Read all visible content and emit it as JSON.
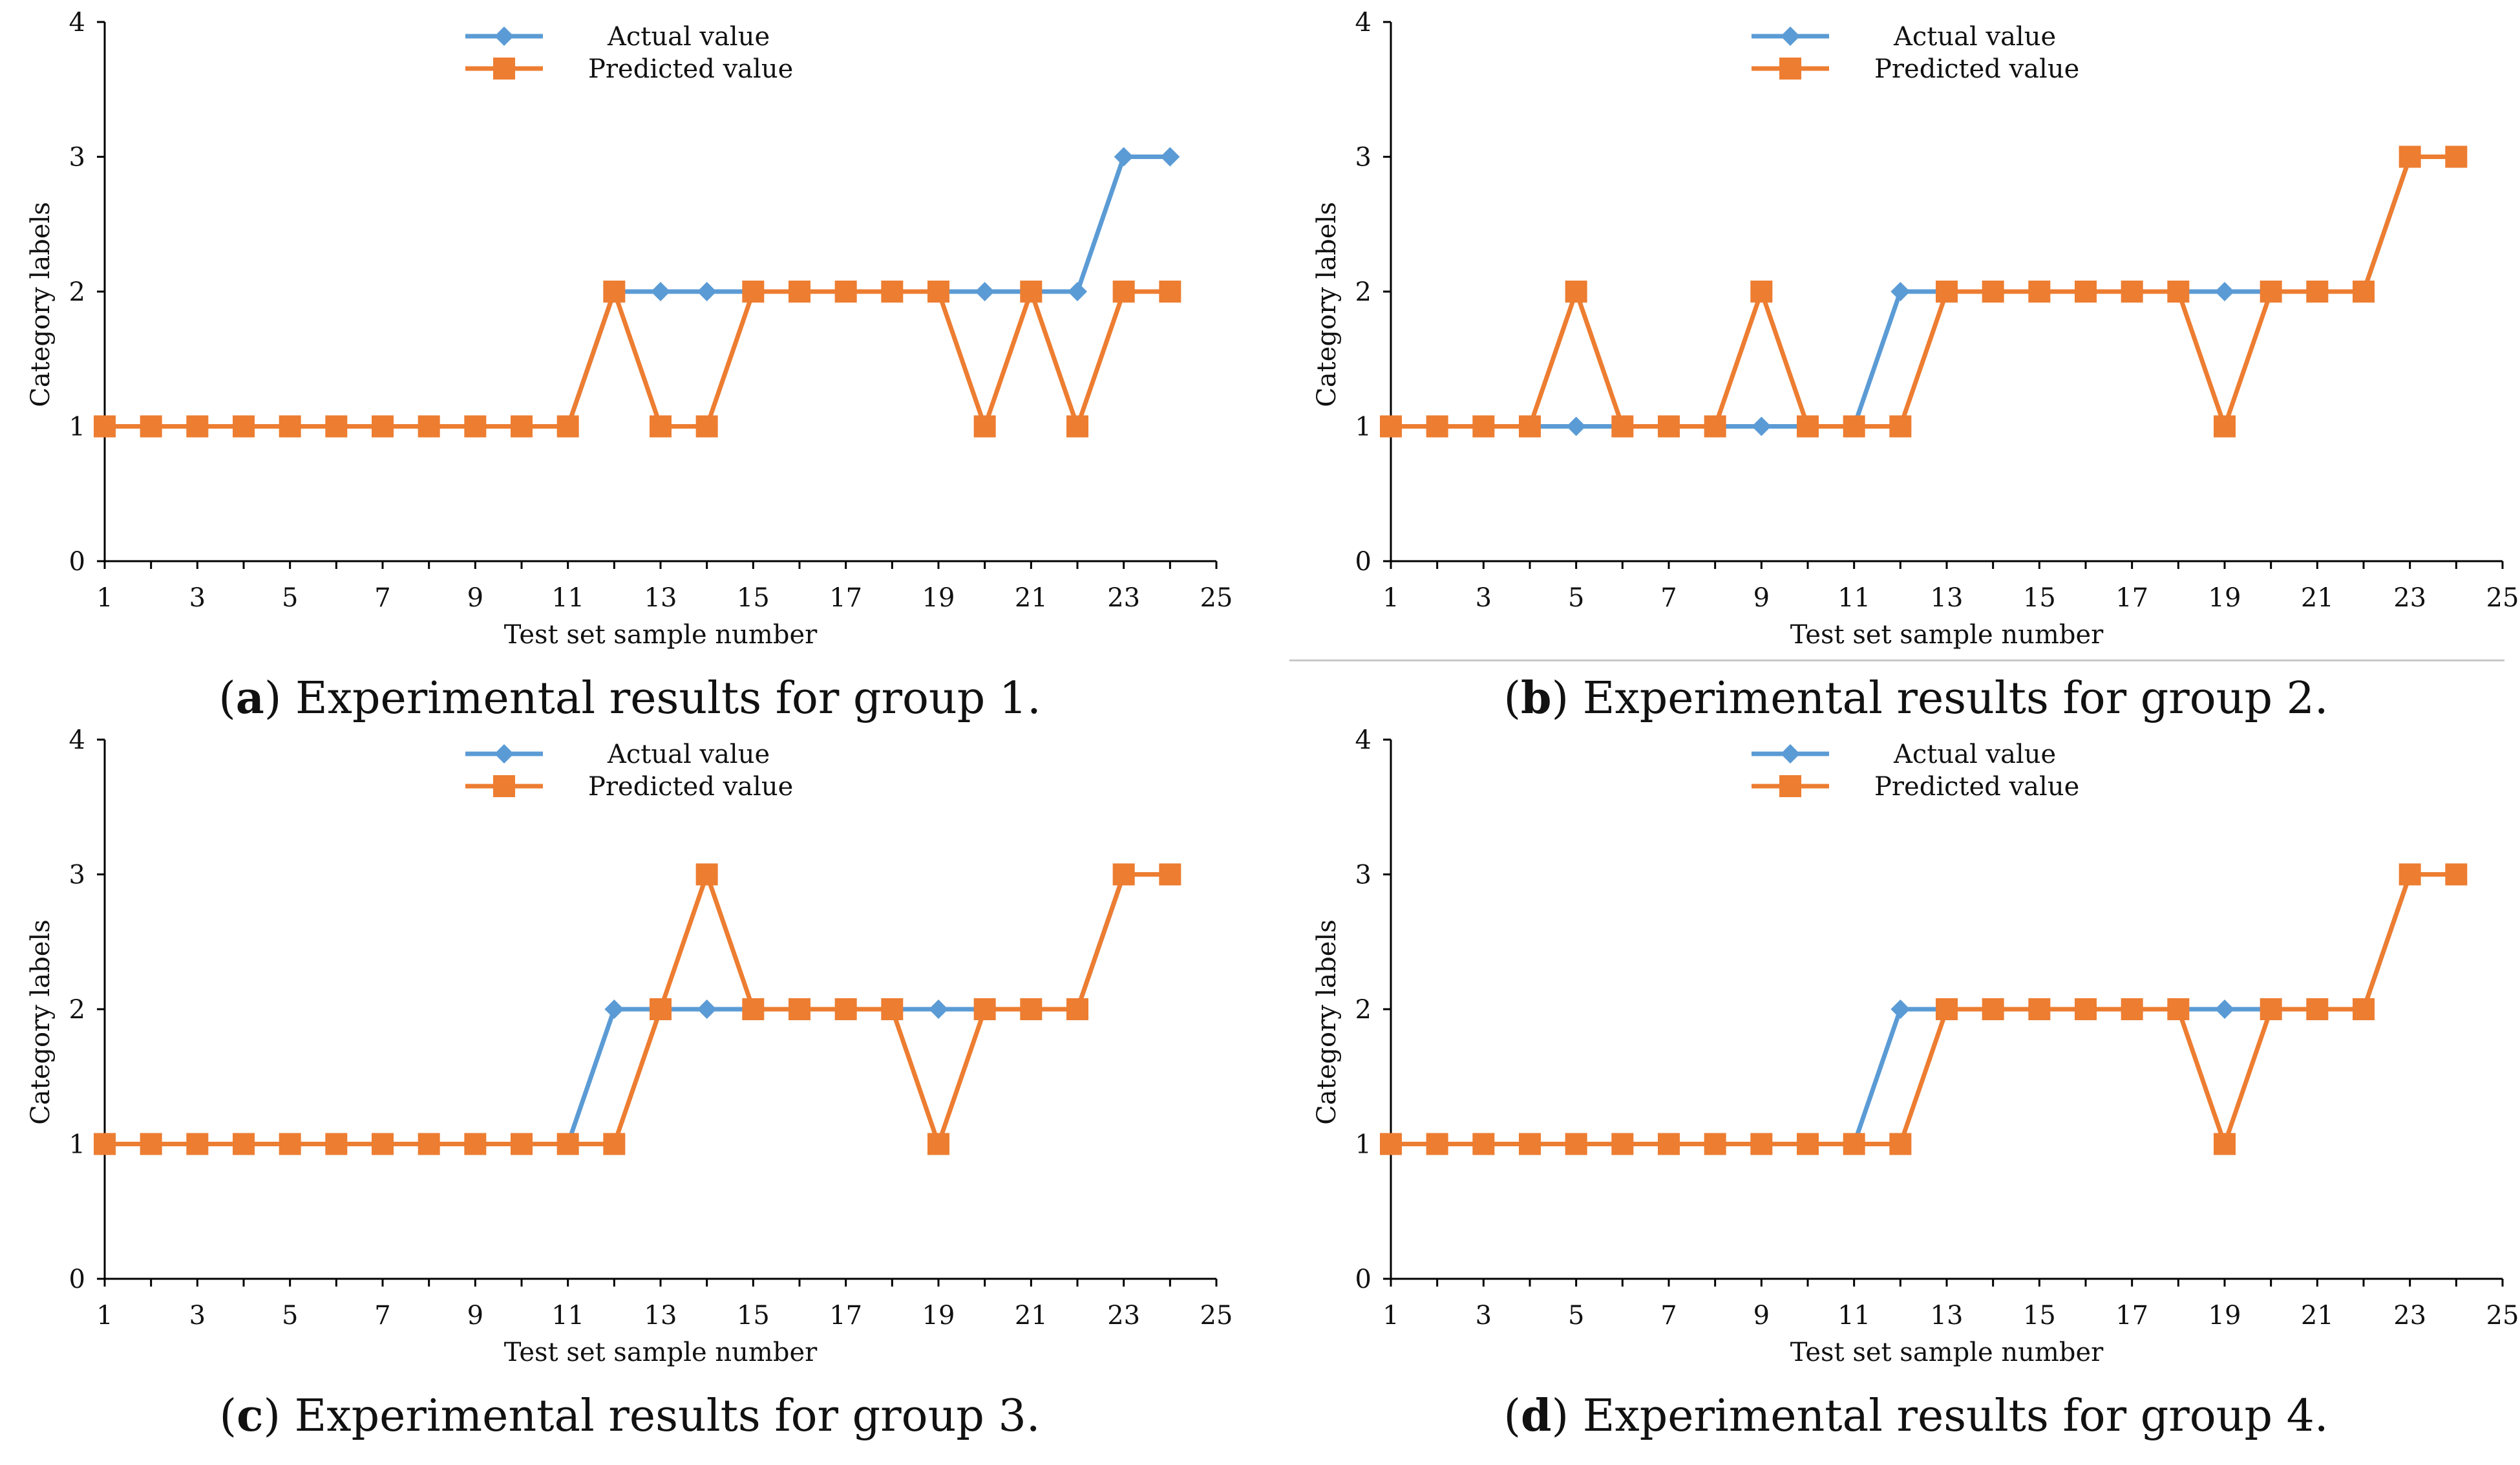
{
  "colors": {
    "actual": "#5B9BD5",
    "predicted": "#ED7D31",
    "axis": "#000000",
    "text": "#111111"
  },
  "panels": [
    {
      "letter": "a",
      "caption": ") Experimental results for group 1.",
      "chart_data": {
        "type": "line",
        "xlabel": "Test set sample number",
        "ylabel": "Category labels",
        "xlim": [
          1,
          25
        ],
        "ylim": [
          0,
          4
        ],
        "xticks": [
          "1",
          "3",
          "5",
          "7",
          "9",
          "11",
          "13",
          "15",
          "17",
          "19",
          "21",
          "23",
          "25"
        ],
        "yticks": [
          "0",
          "1",
          "2",
          "3",
          "4"
        ],
        "x": [
          1,
          2,
          3,
          4,
          5,
          6,
          7,
          8,
          9,
          10,
          11,
          12,
          13,
          14,
          15,
          16,
          17,
          18,
          19,
          20,
          21,
          22,
          23,
          24
        ],
        "series": [
          {
            "name": "Actual value",
            "marker": "diamond",
            "values": [
              1,
              1,
              1,
              1,
              1,
              1,
              1,
              1,
              1,
              1,
              1,
              2,
              2,
              2,
              2,
              2,
              2,
              2,
              2,
              2,
              2,
              2,
              3,
              3
            ]
          },
          {
            "name": "Predicted value",
            "marker": "square",
            "values": [
              1,
              1,
              1,
              1,
              1,
              1,
              1,
              1,
              1,
              1,
              1,
              2,
              1,
              1,
              2,
              2,
              2,
              2,
              2,
              1,
              2,
              1,
              2,
              2
            ]
          }
        ],
        "legend_position": "top-center"
      }
    },
    {
      "letter": "b",
      "caption": ") Experimental results for group 2.",
      "chart_data": {
        "type": "line",
        "xlabel": "Test set sample number",
        "ylabel": "Category labels",
        "xlim": [
          1,
          25
        ],
        "ylim": [
          0,
          4
        ],
        "xticks": [
          "1",
          "3",
          "5",
          "7",
          "9",
          "11",
          "13",
          "15",
          "17",
          "19",
          "21",
          "23",
          "25"
        ],
        "yticks": [
          "0",
          "1",
          "2",
          "3",
          "4"
        ],
        "x": [
          1,
          2,
          3,
          4,
          5,
          6,
          7,
          8,
          9,
          10,
          11,
          12,
          13,
          14,
          15,
          16,
          17,
          18,
          19,
          20,
          21,
          22,
          23,
          24
        ],
        "series": [
          {
            "name": "Actual value",
            "marker": "diamond",
            "values": [
              1,
              1,
              1,
              1,
              1,
              1,
              1,
              1,
              1,
              1,
              1,
              2,
              2,
              2,
              2,
              2,
              2,
              2,
              2,
              2,
              2,
              2,
              3,
              3
            ]
          },
          {
            "name": "Predicted value",
            "marker": "square",
            "values": [
              1,
              1,
              1,
              1,
              2,
              1,
              1,
              1,
              2,
              1,
              1,
              1,
              2,
              2,
              2,
              2,
              2,
              2,
              1,
              2,
              2,
              2,
              3,
              3
            ]
          }
        ],
        "legend_position": "top-center"
      }
    },
    {
      "letter": "c",
      "caption": ") Experimental results for group 3.",
      "chart_data": {
        "type": "line",
        "xlabel": "Test set sample number",
        "ylabel": "Category labels",
        "xlim": [
          1,
          25
        ],
        "ylim": [
          0,
          4
        ],
        "xticks": [
          "1",
          "3",
          "5",
          "7",
          "9",
          "11",
          "13",
          "15",
          "17",
          "19",
          "21",
          "23",
          "25"
        ],
        "yticks": [
          "0",
          "1",
          "2",
          "3",
          "4"
        ],
        "x": [
          1,
          2,
          3,
          4,
          5,
          6,
          7,
          8,
          9,
          10,
          11,
          12,
          13,
          14,
          15,
          16,
          17,
          18,
          19,
          20,
          21,
          22,
          23,
          24
        ],
        "series": [
          {
            "name": "Actual value",
            "marker": "diamond",
            "values": [
              1,
              1,
              1,
              1,
              1,
              1,
              1,
              1,
              1,
              1,
              1,
              2,
              2,
              2,
              2,
              2,
              2,
              2,
              2,
              2,
              2,
              2,
              3,
              3
            ]
          },
          {
            "name": "Predicted value",
            "marker": "square",
            "values": [
              1,
              1,
              1,
              1,
              1,
              1,
              1,
              1,
              1,
              1,
              1,
              1,
              2,
              3,
              2,
              2,
              2,
              2,
              1,
              2,
              2,
              2,
              3,
              3
            ]
          }
        ],
        "legend_position": "top-center"
      }
    },
    {
      "letter": "d",
      "caption": ") Experimental results for group 4.",
      "chart_data": {
        "type": "line",
        "xlabel": "Test set sample number",
        "ylabel": "Category labels",
        "xlim": [
          1,
          25
        ],
        "ylim": [
          0,
          4
        ],
        "xticks": [
          "1",
          "3",
          "5",
          "7",
          "9",
          "11",
          "13",
          "15",
          "17",
          "19",
          "21",
          "23",
          "25"
        ],
        "yticks": [
          "0",
          "1",
          "2",
          "3",
          "4"
        ],
        "x": [
          1,
          2,
          3,
          4,
          5,
          6,
          7,
          8,
          9,
          10,
          11,
          12,
          13,
          14,
          15,
          16,
          17,
          18,
          19,
          20,
          21,
          22,
          23,
          24
        ],
        "series": [
          {
            "name": "Actual value",
            "marker": "diamond",
            "values": [
              1,
              1,
              1,
              1,
              1,
              1,
              1,
              1,
              1,
              1,
              1,
              2,
              2,
              2,
              2,
              2,
              2,
              2,
              2,
              2,
              2,
              2,
              3,
              3
            ]
          },
          {
            "name": "Predicted value",
            "marker": "square",
            "values": [
              1,
              1,
              1,
              1,
              1,
              1,
              1,
              1,
              1,
              1,
              1,
              1,
              2,
              2,
              2,
              2,
              2,
              2,
              1,
              2,
              2,
              2,
              3,
              3
            ]
          }
        ],
        "legend_position": "top-center"
      }
    }
  ]
}
